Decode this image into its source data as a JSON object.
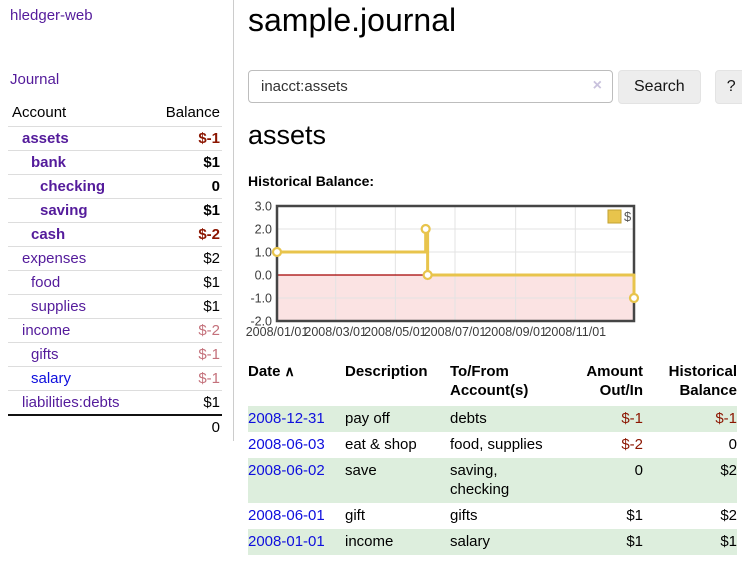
{
  "app": {
    "title": "hledger-web"
  },
  "sidebar": {
    "journal_link": "Journal",
    "accounts_table": {
      "headers": [
        "Account",
        "Balance"
      ],
      "rows": [
        {
          "account": "assets",
          "indent": 0,
          "bold": true,
          "balance": "$-1",
          "balance_style": "neg"
        },
        {
          "account": "bank",
          "indent": 1,
          "bold": true,
          "balance": "$1",
          "balance_style": "normal"
        },
        {
          "account": "checking",
          "indent": 2,
          "bold": true,
          "balance": "0",
          "balance_style": "normal"
        },
        {
          "account": "saving",
          "indent": 2,
          "bold": true,
          "balance": "$1",
          "balance_style": "normal"
        },
        {
          "account": "cash",
          "indent": 1,
          "bold": true,
          "balance": "$-2",
          "balance_style": "neg"
        },
        {
          "account": "expenses",
          "indent": 0,
          "bold": false,
          "balance": "$2",
          "balance_style": "normal"
        },
        {
          "account": "food",
          "indent": 1,
          "bold": false,
          "balance": "$1",
          "balance_style": "normal"
        },
        {
          "account": "supplies",
          "indent": 1,
          "bold": false,
          "balance": "$1",
          "balance_style": "normal"
        },
        {
          "account": "income",
          "indent": 0,
          "bold": false,
          "balance": "$-2",
          "balance_style": "faded"
        },
        {
          "account": "gifts",
          "indent": 1,
          "bold": false,
          "balance": "$-1",
          "balance_style": "faded"
        },
        {
          "account": "salary",
          "indent": 1,
          "bold": false,
          "link_color": "blue",
          "balance": "$-1",
          "balance_style": "faded"
        },
        {
          "account": "liabilities:debts",
          "indent": 0,
          "bold": false,
          "balance": "$1",
          "balance_style": "normal"
        }
      ],
      "total": "0"
    }
  },
  "header": {
    "title": "sample.journal"
  },
  "search": {
    "value": "inacct:assets",
    "clear_icon": "×",
    "button_label": "Search",
    "help_label": "?"
  },
  "account_page": {
    "heading": "assets",
    "chart_label": "Historical Balance:"
  },
  "chart_data": {
    "type": "line",
    "step": true,
    "title": "Historical Balance",
    "series": [
      {
        "name": "$",
        "color": "#e8c44c",
        "points": [
          [
            "2008-01-01",
            1.0
          ],
          [
            "2008-06-01",
            2.0
          ],
          [
            "2008-06-03",
            0.0
          ],
          [
            "2008-12-31",
            -1.0
          ]
        ]
      }
    ],
    "x_range": [
      "2008-01-01",
      "2008-12-31"
    ],
    "x_ticks": [
      {
        "date": "2008-01-01",
        "label": "2008/01/01"
      },
      {
        "date": "2008-03-01",
        "label": "2008/03/01"
      },
      {
        "date": "2008-05-01",
        "label": "2008/05/01"
      },
      {
        "date": "2008-07-01",
        "label": "2008/07/01"
      },
      {
        "date": "2008-09-01",
        "label": "2008/09/01"
      },
      {
        "date": "2008-11-01",
        "label": "2008/11/01"
      }
    ],
    "ylim": [
      -2.0,
      3.0
    ],
    "y_ticks": [
      {
        "value": 3,
        "label": "3.0"
      },
      {
        "value": 2,
        "label": "2.0"
      },
      {
        "value": 1,
        "label": "1.0"
      },
      {
        "value": 0,
        "label": "0.0"
      },
      {
        "value": -1,
        "label": "-1.0"
      },
      {
        "value": -2,
        "label": "-2.0"
      }
    ],
    "legend": {
      "label": "$",
      "position": "top-right"
    },
    "grid": true,
    "negative_region_color": "#fbe3e3",
    "zero_line_color": "#a40000",
    "border_color": "#454545",
    "grid_color": "#e3e3e3"
  },
  "register_table": {
    "headers": {
      "date": "Date",
      "sort_icon": "∧",
      "description": "Description",
      "accounts": "To/From\nAccount(s)",
      "amount": "Amount\nOut/In",
      "balance": "Historical\nBalance"
    },
    "rows": [
      {
        "date": "2008-12-31",
        "description": "pay off",
        "accounts": "debts",
        "amount": "$-1",
        "amount_neg": true,
        "balance": "$-1",
        "balance_neg": true
      },
      {
        "date": "2008-06-03",
        "description": "eat & shop",
        "accounts": "food, supplies",
        "amount": "$-2",
        "amount_neg": true,
        "balance": "0",
        "balance_neg": false
      },
      {
        "date": "2008-06-02",
        "description": "save",
        "accounts": "saving,\nchecking",
        "amount": "0",
        "amount_neg": false,
        "balance": "$2",
        "balance_neg": false
      },
      {
        "date": "2008-06-01",
        "description": "gift",
        "accounts": "gifts",
        "amount": "$1",
        "amount_neg": false,
        "balance": "$2",
        "balance_neg": false
      },
      {
        "date": "2008-01-01",
        "description": "income",
        "accounts": "salary",
        "amount": "$1",
        "amount_neg": false,
        "balance": "$1",
        "balance_neg": false
      }
    ]
  }
}
